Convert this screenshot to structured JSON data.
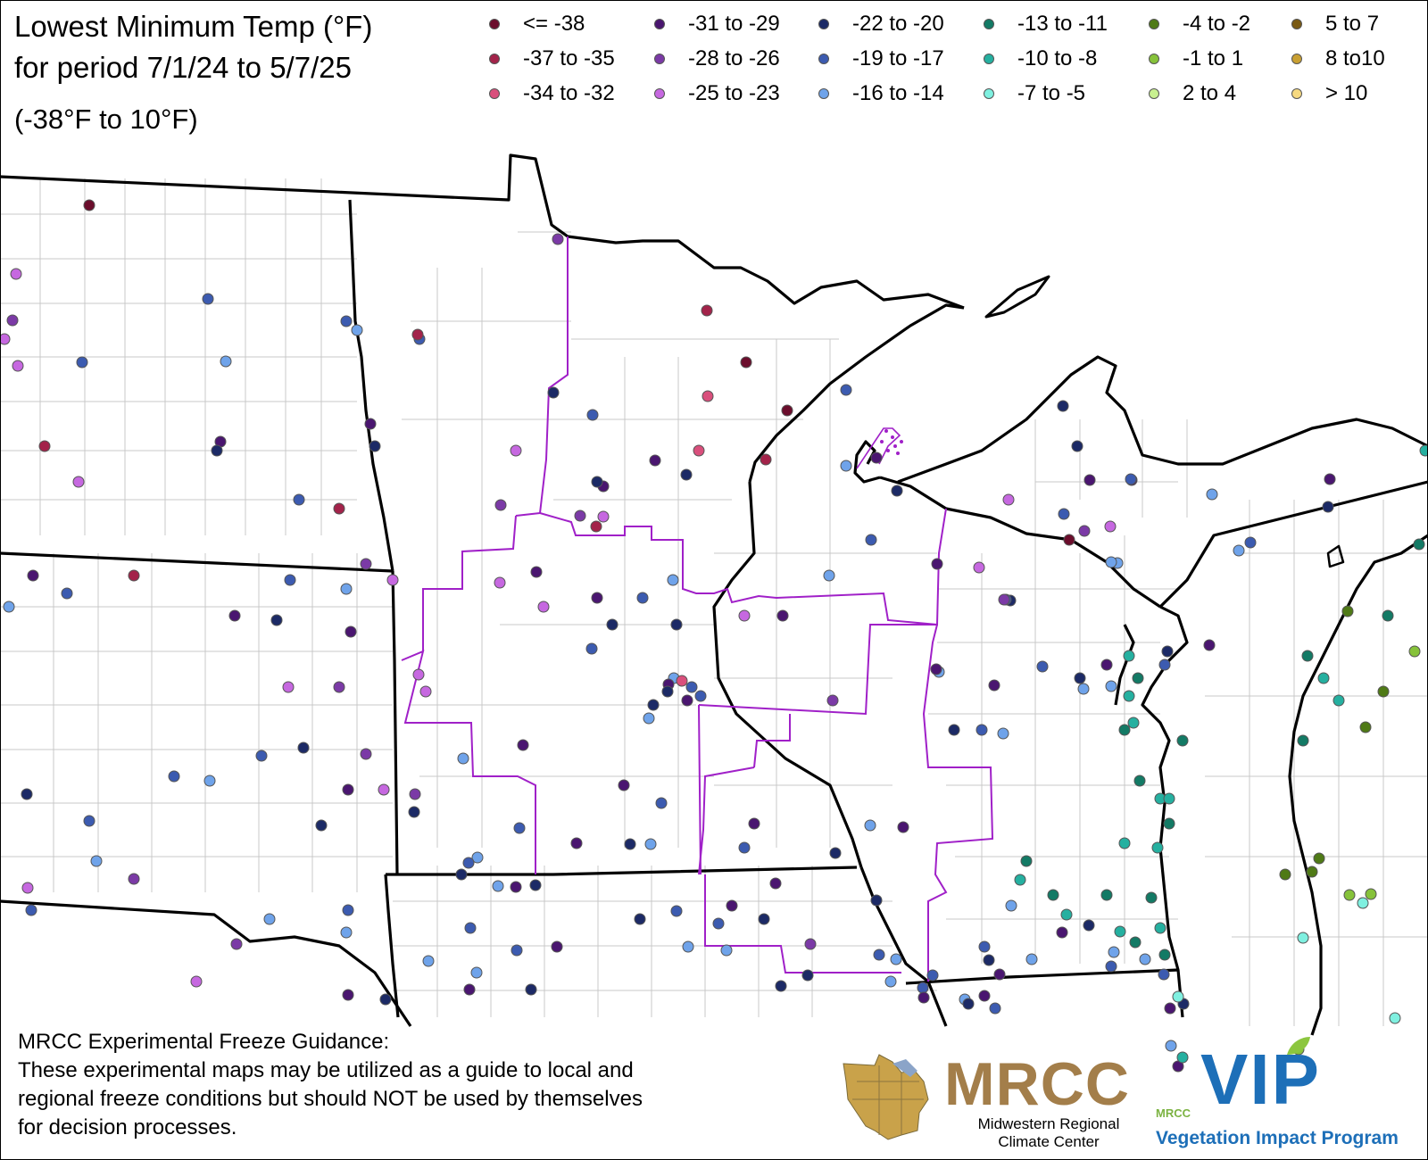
{
  "title": {
    "line1": "Lowest Minimum Temp (°F)",
    "line2": "for period 7/1/24 to 5/7/25",
    "range": "(-38°F to 10°F)"
  },
  "legend": [
    {
      "label": "<= -38",
      "color": "#6b0d2c"
    },
    {
      "label": "-37 to -35",
      "color": "#a3234a"
    },
    {
      "label": "-34 to -32",
      "color": "#d94f7c"
    },
    {
      "label": "-31 to -29",
      "color": "#4a1670"
    },
    {
      "label": "-28 to -26",
      "color": "#7b3aa6"
    },
    {
      "label": "-25 to -23",
      "color": "#c668e0"
    },
    {
      "label": "-22 to -20",
      "color": "#1c2a66"
    },
    {
      "label": "-19 to -17",
      "color": "#3c5bb0"
    },
    {
      "label": "-16 to -14",
      "color": "#6fa3ea"
    },
    {
      "label": "-13 to -11",
      "color": "#137a65"
    },
    {
      "label": "-10 to -8",
      "color": "#25b0a0"
    },
    {
      "label": "-7 to -5",
      "color": "#7ff0e0"
    },
    {
      "label": "-4 to -2",
      "color": "#4f7a16"
    },
    {
      "label": "-1 to 1",
      "color": "#86c23a"
    },
    {
      "label": "2 to 4",
      "color": "#c8f090"
    },
    {
      "label": "5 to 7",
      "color": "#7a5a14"
    },
    {
      "label": "8 to10",
      "color": "#c9a032"
    },
    {
      "label": "> 10",
      "color": "#f6d980"
    }
  ],
  "disclaimer": {
    "heading": "MRCC Experimental Freeze Guidance:",
    "lines": [
      "These experimental maps may be utilized as a guide to local and",
      "regional freeze conditions but should NOT be used by themselves",
      "for decision processes."
    ]
  },
  "logos": {
    "mrcc": "MRCC",
    "mrcc_name_line1": "Midwestern Regional",
    "mrcc_name_line2": "Climate Center",
    "vip": "VIP",
    "vip_small": "MRCC",
    "vip_name": "Vegetation Impact Program"
  },
  "stations": [
    [
      0,
      100,
      230
    ],
    [
      2,
      18,
      307
    ],
    [
      2,
      14,
      359
    ],
    [
      2,
      20,
      410
    ],
    [
      0,
      50,
      500
    ],
    [
      2,
      88,
      540
    ],
    [
      1,
      233,
      335
    ],
    [
      1,
      253,
      405
    ],
    [
      1,
      247,
      495
    ],
    [
      1,
      243,
      505
    ],
    [
      1,
      92,
      406
    ],
    [
      2,
      5,
      380
    ],
    [
      1,
      37,
      645
    ],
    [
      0,
      150,
      645
    ],
    [
      1,
      75,
      665
    ],
    [
      1,
      10,
      680
    ],
    [
      1,
      263,
      690
    ],
    [
      1,
      310,
      695
    ],
    [
      1,
      335,
      560
    ],
    [
      0,
      380,
      570
    ],
    [
      2,
      410,
      632
    ],
    [
      2,
      440,
      650
    ],
    [
      1,
      325,
      650
    ],
    [
      1,
      388,
      660
    ],
    [
      1,
      393,
      708
    ],
    [
      2,
      323,
      770
    ],
    [
      2,
      380,
      770
    ],
    [
      2,
      469,
      756
    ],
    [
      2,
      410,
      845
    ],
    [
      1,
      340,
      838
    ],
    [
      1,
      293,
      847
    ],
    [
      2,
      430,
      885
    ],
    [
      1,
      390,
      885
    ],
    [
      1,
      360,
      925
    ],
    [
      1,
      195,
      870
    ],
    [
      1,
      235,
      875
    ],
    [
      2,
      465,
      890
    ],
    [
      1,
      30,
      890
    ],
    [
      1,
      100,
      920
    ],
    [
      1,
      108,
      965
    ],
    [
      2,
      150,
      985
    ],
    [
      2,
      31,
      995
    ],
    [
      1,
      35,
      1020
    ],
    [
      1,
      302,
      1030
    ],
    [
      2,
      265,
      1058
    ],
    [
      2,
      220,
      1100
    ],
    [
      1,
      390,
      1020
    ],
    [
      1,
      388,
      1045
    ],
    [
      1,
      390,
      1115
    ],
    [
      1,
      432,
      1120
    ],
    [
      1,
      388,
      360
    ],
    [
      1,
      400,
      370
    ],
    [
      1,
      415,
      475
    ],
    [
      1,
      420,
      500
    ],
    [
      1,
      470,
      380
    ],
    [
      0,
      468,
      375
    ],
    [
      2,
      625,
      268
    ],
    [
      1,
      620,
      440
    ],
    [
      1,
      664,
      465
    ],
    [
      2,
      578,
      505
    ],
    [
      1,
      734,
      516
    ],
    [
      1,
      769,
      532
    ],
    [
      0,
      783,
      505
    ],
    [
      0,
      836,
      406
    ],
    [
      0,
      792,
      348
    ],
    [
      0,
      793,
      444
    ],
    [
      0,
      882,
      460
    ],
    [
      0,
      858,
      515
    ],
    [
      1,
      676,
      545
    ],
    [
      2,
      676,
      579
    ],
    [
      1,
      948,
      437
    ],
    [
      1,
      948,
      522
    ],
    [
      1,
      982,
      513
    ],
    [
      1,
      1005,
      550
    ],
    [
      1,
      976,
      605
    ],
    [
      1,
      929,
      645
    ],
    [
      1,
      877,
      690
    ],
    [
      2,
      834,
      690
    ],
    [
      2,
      561,
      566
    ],
    [
      2,
      560,
      653
    ],
    [
      1,
      601,
      641
    ],
    [
      2,
      609,
      680
    ],
    [
      1,
      720,
      670
    ],
    [
      1,
      754,
      650
    ],
    [
      1,
      669,
      670
    ],
    [
      1,
      686,
      700
    ],
    [
      1,
      663,
      727
    ],
    [
      2,
      477,
      775
    ],
    [
      0,
      668,
      590
    ],
    [
      1,
      669,
      540
    ],
    [
      2,
      650,
      578
    ],
    [
      1,
      755,
      760
    ],
    [
      1,
      770,
      785
    ],
    [
      1,
      732,
      790
    ],
    [
      1,
      775,
      770
    ],
    [
      0,
      764,
      763
    ],
    [
      1,
      749,
      767
    ],
    [
      1,
      748,
      775
    ],
    [
      1,
      785,
      780
    ],
    [
      1,
      727,
      805
    ],
    [
      1,
      699,
      880
    ],
    [
      1,
      758,
      700
    ],
    [
      2,
      933,
      785
    ],
    [
      1,
      519,
      850
    ],
    [
      1,
      586,
      835
    ],
    [
      1,
      464,
      910
    ],
    [
      1,
      582,
      928
    ],
    [
      1,
      535,
      961
    ],
    [
      1,
      646,
      945
    ],
    [
      1,
      706,
      946
    ],
    [
      1,
      741,
      900
    ],
    [
      1,
      729,
      946
    ],
    [
      1,
      845,
      923
    ],
    [
      1,
      936,
      956
    ],
    [
      1,
      834,
      950
    ],
    [
      1,
      975,
      925
    ],
    [
      1,
      1012,
      927
    ],
    [
      1,
      1069,
      818
    ],
    [
      1,
      1100,
      818
    ],
    [
      1,
      1124,
      822
    ],
    [
      1,
      1114,
      768
    ],
    [
      1,
      1132,
      673
    ],
    [
      1,
      1127,
      672
    ],
    [
      1,
      1214,
      772
    ],
    [
      1,
      1050,
      632
    ],
    [
      2,
      1097,
      636
    ],
    [
      2,
      1125,
      672
    ],
    [
      2,
      1130,
      560
    ],
    [
      1,
      1221,
      538
    ],
    [
      1,
      1207,
      500
    ],
    [
      1,
      1192,
      576
    ],
    [
      1,
      1252,
      631
    ],
    [
      1,
      1268,
      538
    ],
    [
      1,
      1191,
      455
    ],
    [
      1,
      1267,
      537
    ],
    [
      1,
      1358,
      554
    ],
    [
      1,
      1490,
      537
    ],
    [
      1,
      1488,
      568
    ],
    [
      1,
      1401,
      608
    ],
    [
      1,
      1388,
      617
    ],
    [
      1,
      1355,
      723
    ],
    [
      1,
      1308,
      730
    ],
    [
      1,
      1305,
      745
    ],
    [
      1,
      1245,
      769
    ],
    [
      1,
      1240,
      745
    ],
    [
      1,
      1210,
      760
    ],
    [
      1,
      1168,
      747
    ],
    [
      1,
      1052,
      753
    ],
    [
      1,
      1049,
      750
    ],
    [
      2,
      1244,
      590
    ],
    [
      0,
      1198,
      605
    ],
    [
      1,
      1245,
      630
    ],
    [
      2,
      1215,
      595
    ],
    [
      1,
      517,
      980
    ],
    [
      1,
      525,
      967
    ],
    [
      1,
      558,
      993
    ],
    [
      1,
      578,
      994
    ],
    [
      1,
      600,
      992
    ],
    [
      1,
      527,
      1040
    ],
    [
      1,
      480,
      1077
    ],
    [
      1,
      526,
      1109
    ],
    [
      1,
      595,
      1109
    ],
    [
      1,
      579,
      1065
    ],
    [
      1,
      534,
      1090
    ],
    [
      1,
      624,
      1061
    ],
    [
      1,
      717,
      1030
    ],
    [
      1,
      758,
      1021
    ],
    [
      1,
      771,
      1061
    ],
    [
      1,
      820,
      1015
    ],
    [
      1,
      856,
      1030
    ],
    [
      1,
      805,
      1035
    ],
    [
      1,
      814,
      1065
    ],
    [
      1,
      869,
      990
    ],
    [
      1,
      905,
      1093
    ],
    [
      1,
      1045,
      1093
    ],
    [
      1,
      1004,
      1075
    ],
    [
      2,
      908,
      1058
    ],
    [
      1,
      875,
      1105
    ],
    [
      1,
      1034,
      1107
    ],
    [
      1,
      1081,
      1120
    ],
    [
      1,
      1103,
      1116
    ],
    [
      1,
      982,
      1009
    ],
    [
      1,
      985,
      1070
    ],
    [
      1,
      998,
      1100
    ],
    [
      1,
      1035,
      1118
    ],
    [
      1,
      1085,
      1125
    ],
    [
      1,
      1115,
      1130
    ],
    [
      1,
      1133,
      1015
    ],
    [
      1,
      1120,
      1092
    ],
    [
      1,
      1108,
      1076
    ],
    [
      1,
      1103,
      1061
    ],
    [
      1,
      1156,
      1075
    ],
    [
      1,
      1190,
      1045
    ],
    [
      1,
      1220,
      1037
    ],
    [
      1,
      1245,
      1083
    ],
    [
      1,
      1248,
      1067
    ],
    [
      1,
      1311,
      1130
    ],
    [
      1,
      1326,
      1125
    ],
    [
      1,
      1304,
      1092
    ],
    [
      1,
      1283,
      1075
    ],
    [
      3,
      1150,
      965
    ],
    [
      3,
      1143,
      986
    ],
    [
      3,
      1180,
      1003
    ],
    [
      3,
      1195,
      1025
    ],
    [
      3,
      1240,
      1003
    ],
    [
      3,
      1260,
      945
    ],
    [
      3,
      1290,
      1006
    ],
    [
      3,
      1297,
      950
    ],
    [
      3,
      1310,
      923
    ],
    [
      3,
      1300,
      895
    ],
    [
      3,
      1277,
      875
    ],
    [
      3,
      1270,
      810
    ],
    [
      3,
      1260,
      818
    ],
    [
      3,
      1265,
      780
    ],
    [
      3,
      1275,
      760
    ],
    [
      3,
      1265,
      735
    ],
    [
      3,
      1325,
      830
    ],
    [
      3,
      1310,
      895
    ],
    [
      3,
      1305,
      1070
    ],
    [
      3,
      1300,
      1040
    ],
    [
      3,
      1272,
      1056
    ],
    [
      3,
      1255,
      1044
    ],
    [
      4,
      1320,
      1117
    ],
    [
      4,
      1512,
      1003
    ],
    [
      4,
      1527,
      1012
    ],
    [
      4,
      1536,
      1002
    ],
    [
      4,
      1460,
      1051
    ],
    [
      4,
      1455,
      1176
    ],
    [
      4,
      1563,
      1141
    ],
    [
      4,
      1585,
      730
    ],
    [
      5,
      1440,
      980
    ],
    [
      5,
      1470,
      977
    ],
    [
      5,
      1478,
      962
    ],
    [
      5,
      1510,
      685
    ],
    [
      5,
      1550,
      775
    ],
    [
      5,
      1530,
      815
    ],
    [
      3,
      1460,
      830
    ],
    [
      3,
      1500,
      785
    ],
    [
      3,
      1555,
      690
    ],
    [
      3,
      1483,
      760
    ],
    [
      3,
      1465,
      735
    ],
    [
      3,
      1597,
      505
    ],
    [
      3,
      1590,
      610
    ],
    [
      1,
      1312,
      1172
    ],
    [
      1,
      1320,
      1195
    ],
    [
      3,
      1325,
      1185
    ]
  ]
}
